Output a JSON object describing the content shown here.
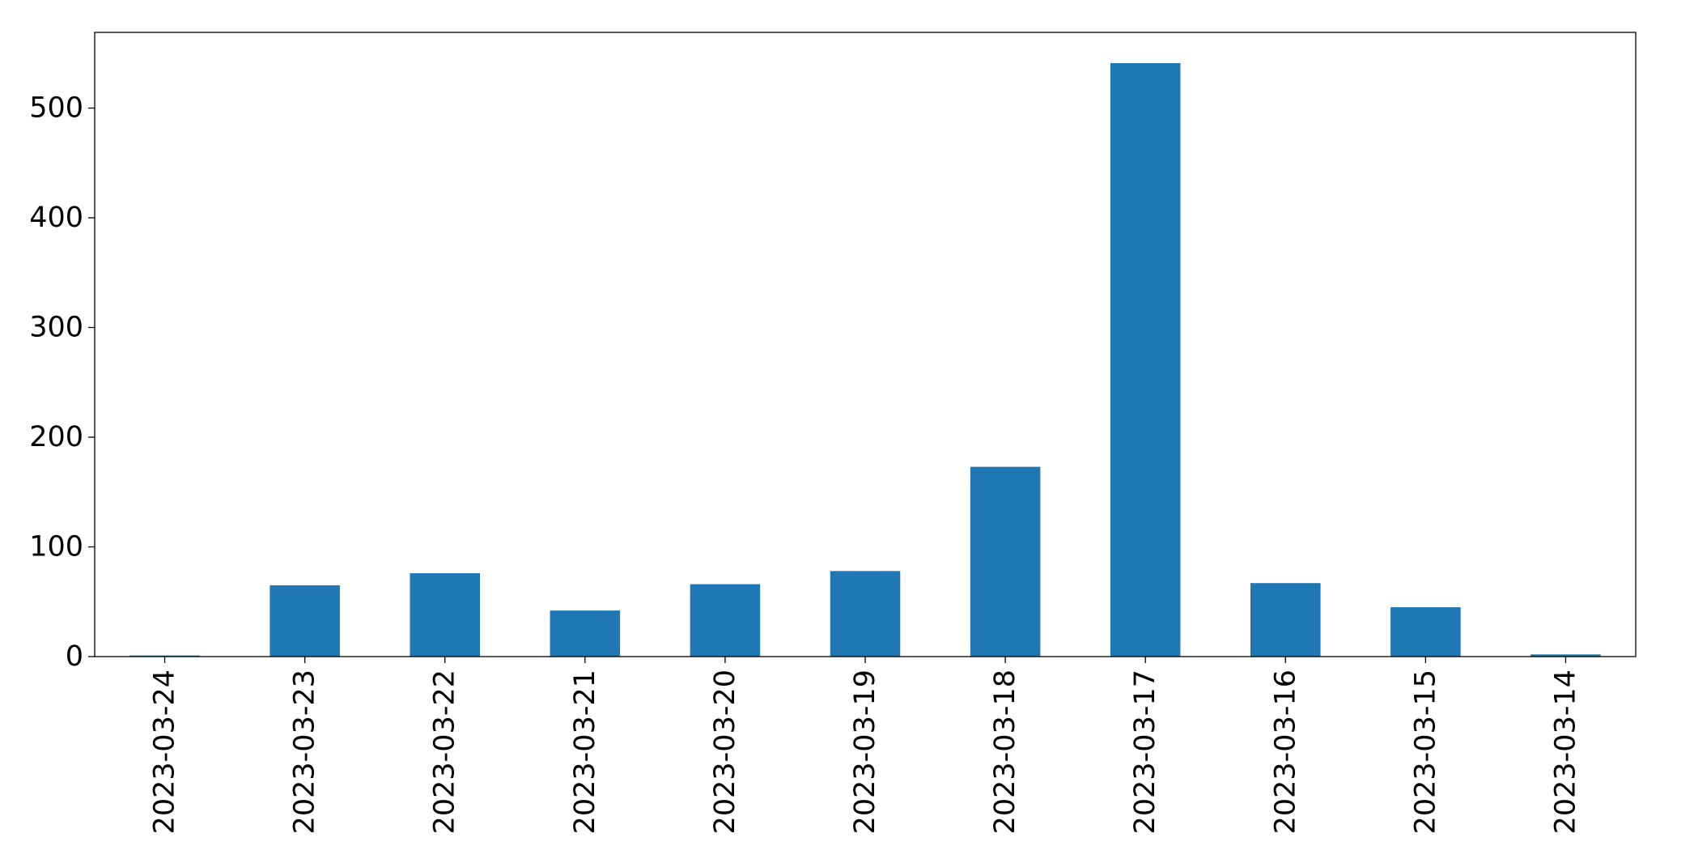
{
  "chart_data": {
    "type": "bar",
    "categories": [
      "2023-03-24",
      "2023-03-23",
      "2023-03-22",
      "2023-03-21",
      "2023-03-20",
      "2023-03-19",
      "2023-03-18",
      "2023-03-17",
      "2023-03-16",
      "2023-03-15",
      "2023-03-14"
    ],
    "values": [
      1,
      65,
      76,
      42,
      66,
      78,
      173,
      541,
      67,
      45,
      2
    ],
    "title": "",
    "xlabel": "",
    "ylabel": "",
    "ylim": [
      0,
      569
    ],
    "yticks": [
      "0",
      "100",
      "200",
      "300",
      "400",
      "500"
    ],
    "grid": false,
    "legend": "none",
    "bar_color": "#1f77b4"
  }
}
